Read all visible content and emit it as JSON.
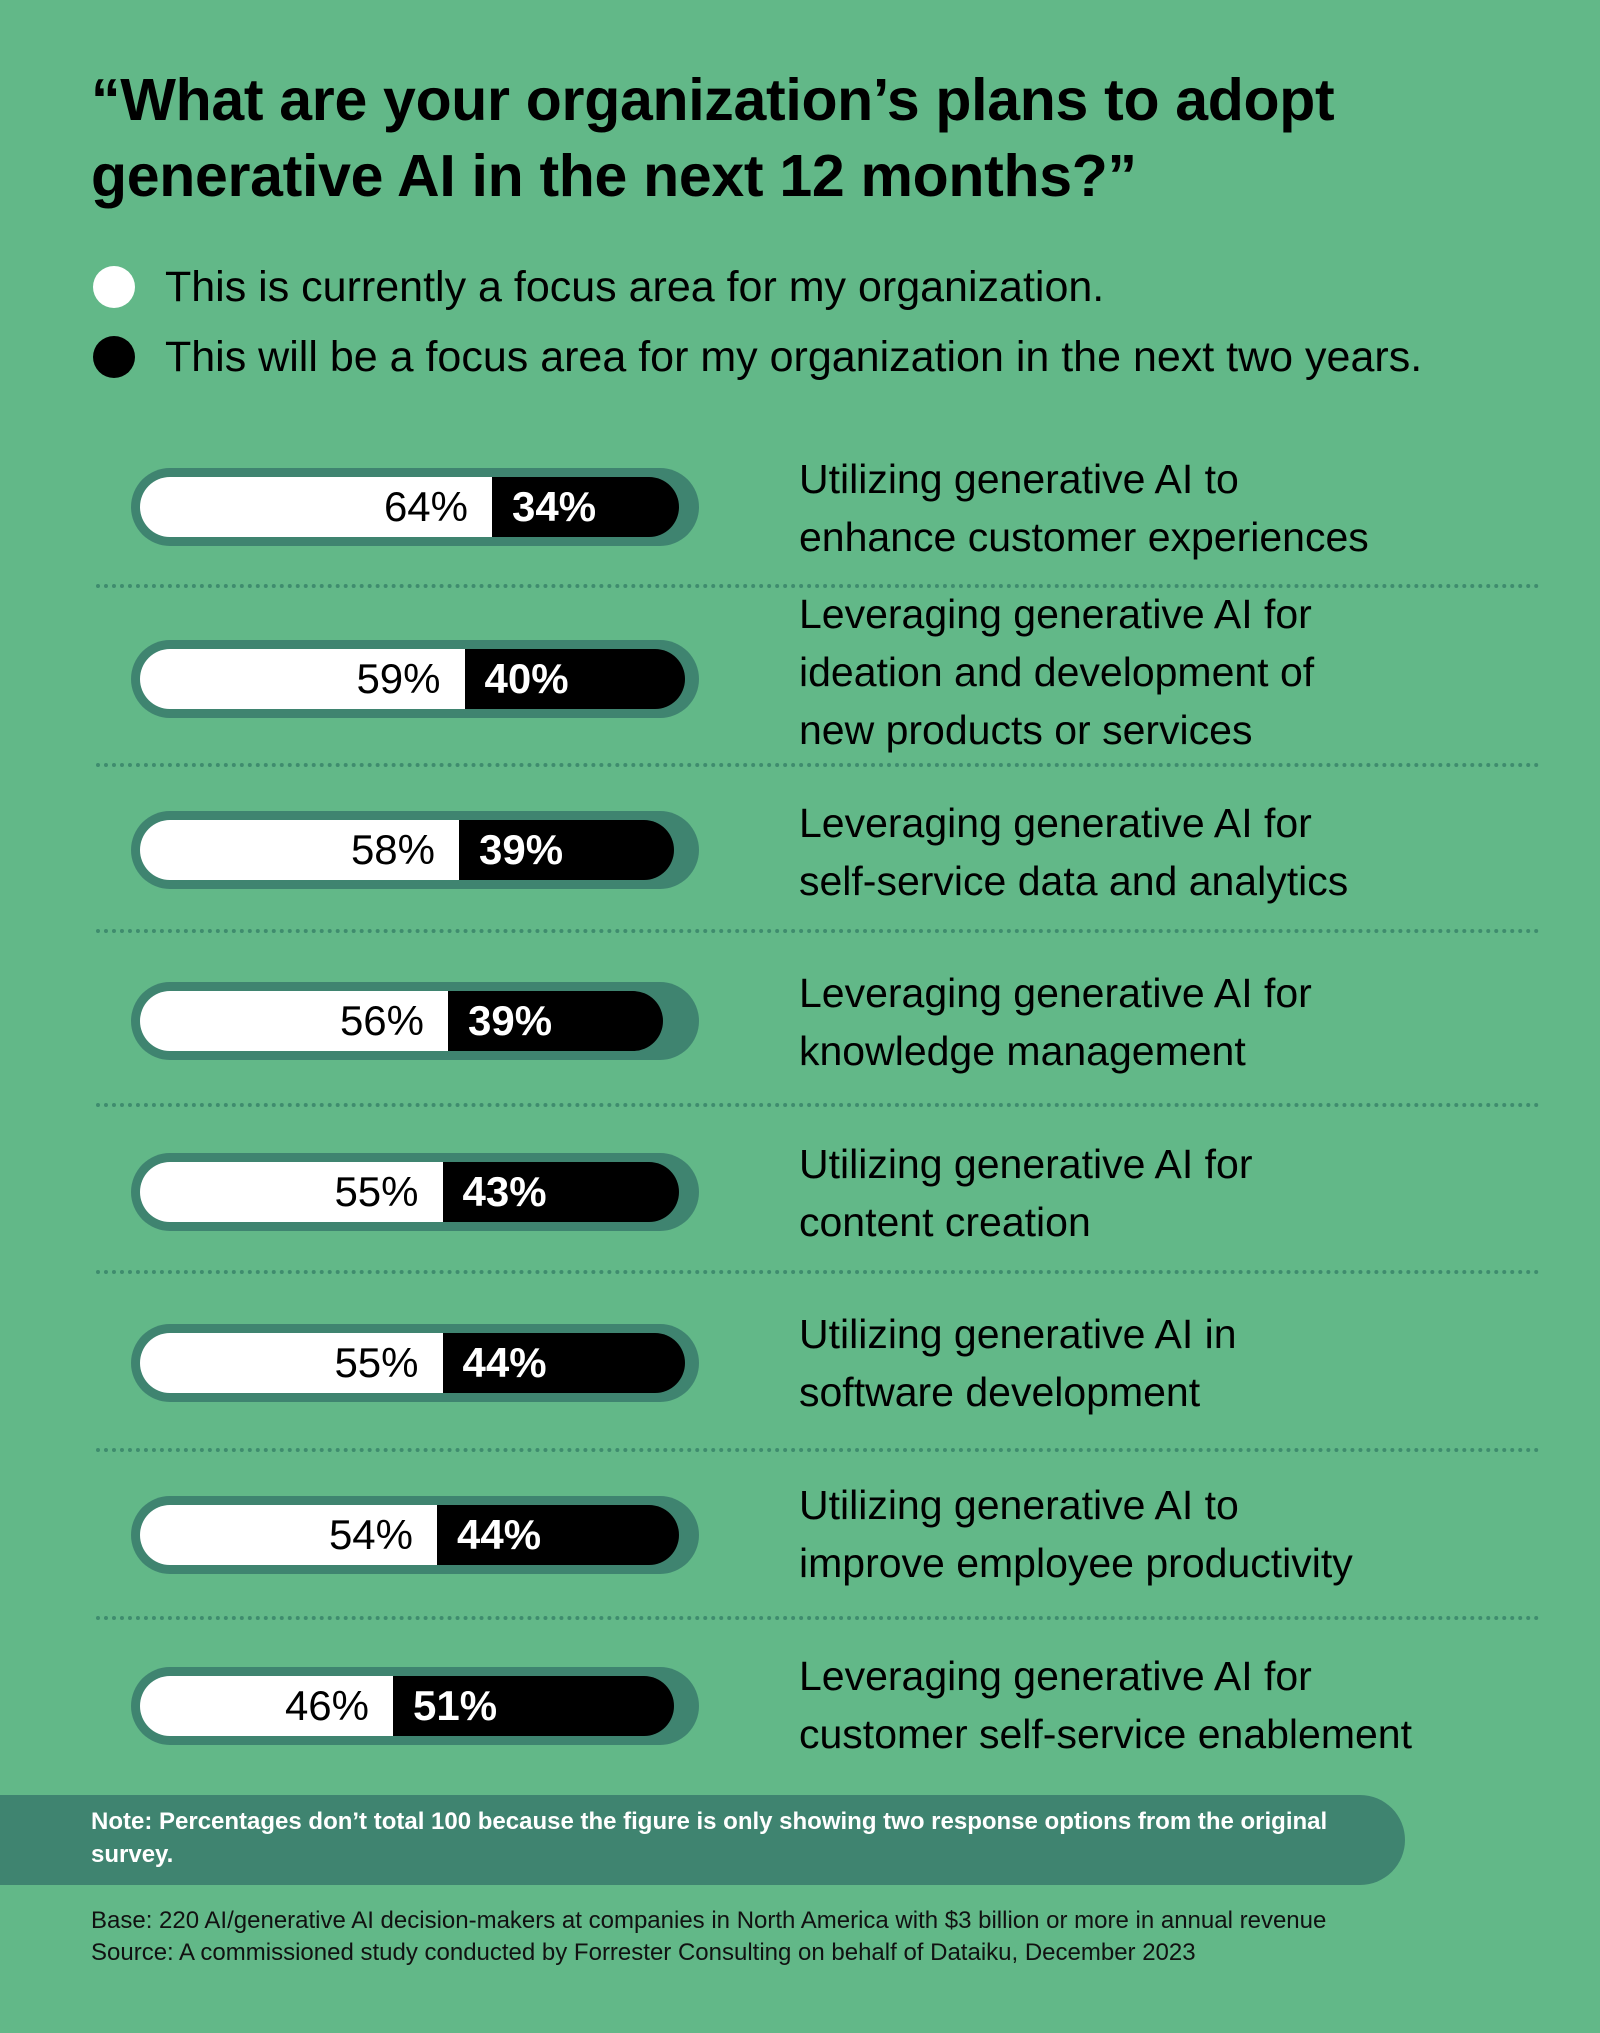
{
  "title": "“What are your organization’s plans to adopt generative AI in the next 12 months?”",
  "legend": [
    {
      "label": "This is currently a focus area for my organization.",
      "color": "#ffffff"
    },
    {
      "label": "This will be a focus area for my organization in the next two years.",
      "color": "#000000"
    }
  ],
  "chart_data": {
    "type": "bar",
    "orientation": "horizontal-stacked",
    "categories": [
      "Utilizing generative AI to\nenhance customer experiences",
      "Leveraging generative AI for\nideation and development of\nnew products or services",
      "Leveraging generative AI for\nself-service data and analytics",
      "Leveraging generative AI for\nknowledge management",
      "Utilizing generative AI for\ncontent creation",
      "Utilizing generative AI in\nsoftware development",
      "Utilizing generative AI to\nimprove employee productivity",
      "Leveraging generative AI for\ncustomer self-service enablement"
    ],
    "series": [
      {
        "name": "This is currently a focus area for my organization.",
        "color": "#ffffff",
        "values": [
          64,
          59,
          58,
          56,
          55,
          55,
          54,
          46
        ]
      },
      {
        "name": "This will be a focus area for my organization in the next two years.",
        "color": "#000000",
        "values": [
          34,
          40,
          39,
          39,
          43,
          44,
          44,
          51
        ]
      }
    ],
    "value_labels": [
      [
        "64%",
        "34%"
      ],
      [
        "59%",
        "40%"
      ],
      [
        "58%",
        "39%"
      ],
      [
        "56%",
        "39%"
      ],
      [
        "55%",
        "43%"
      ],
      [
        "55%",
        "44%"
      ],
      [
        "54%",
        "44%"
      ],
      [
        "46%",
        "51%"
      ]
    ],
    "xlim": [
      0,
      100
    ],
    "legend_position": "top-left"
  },
  "note": "Note: Percentages don’t total 100 because the figure is only showing two response options from the original survey.",
  "footer": {
    "base": "Base: 220 AI/generative AI decision-makers at companies in North America with $3 billion or more in annual revenue",
    "source": "Source: A commissioned study conducted by Forrester Consulting on behalf of Dataiku, December 2023"
  },
  "colors": {
    "background": "#62b888",
    "track": "#3f8470",
    "divider": "#3f8c6e"
  }
}
